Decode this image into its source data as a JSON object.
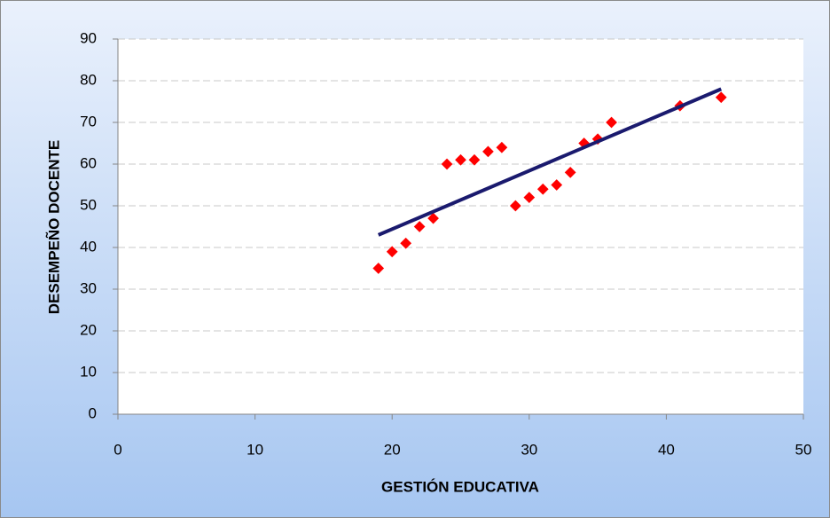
{
  "chart_data": {
    "type": "scatter",
    "xlabel": "GESTIÓN EDUCATIVA",
    "ylabel": "DESEMPEÑO DOCENTE",
    "series": [
      {
        "color": "#ff0000",
        "x": [
          19,
          20,
          21,
          22,
          23,
          24,
          25,
          26,
          27,
          28,
          29,
          30,
          31,
          32,
          33,
          34,
          35,
          36,
          41,
          44
        ],
        "values": [
          35,
          39,
          41,
          45,
          47,
          60,
          61,
          61,
          63,
          64,
          50,
          52,
          54,
          55,
          58,
          65,
          66,
          70,
          74,
          76
        ]
      }
    ],
    "trendline": {
      "color": "#1a1a6e",
      "x": [
        19,
        44
      ],
      "values": [
        43,
        78
      ]
    },
    "xlim": [
      0,
      50
    ],
    "xticks": [
      0,
      10,
      20,
      30,
      40,
      50
    ],
    "ylim": [
      0,
      90
    ],
    "yticks": [
      0,
      10,
      20,
      30,
      40,
      50,
      60,
      70,
      80,
      90
    ],
    "grid": true
  }
}
